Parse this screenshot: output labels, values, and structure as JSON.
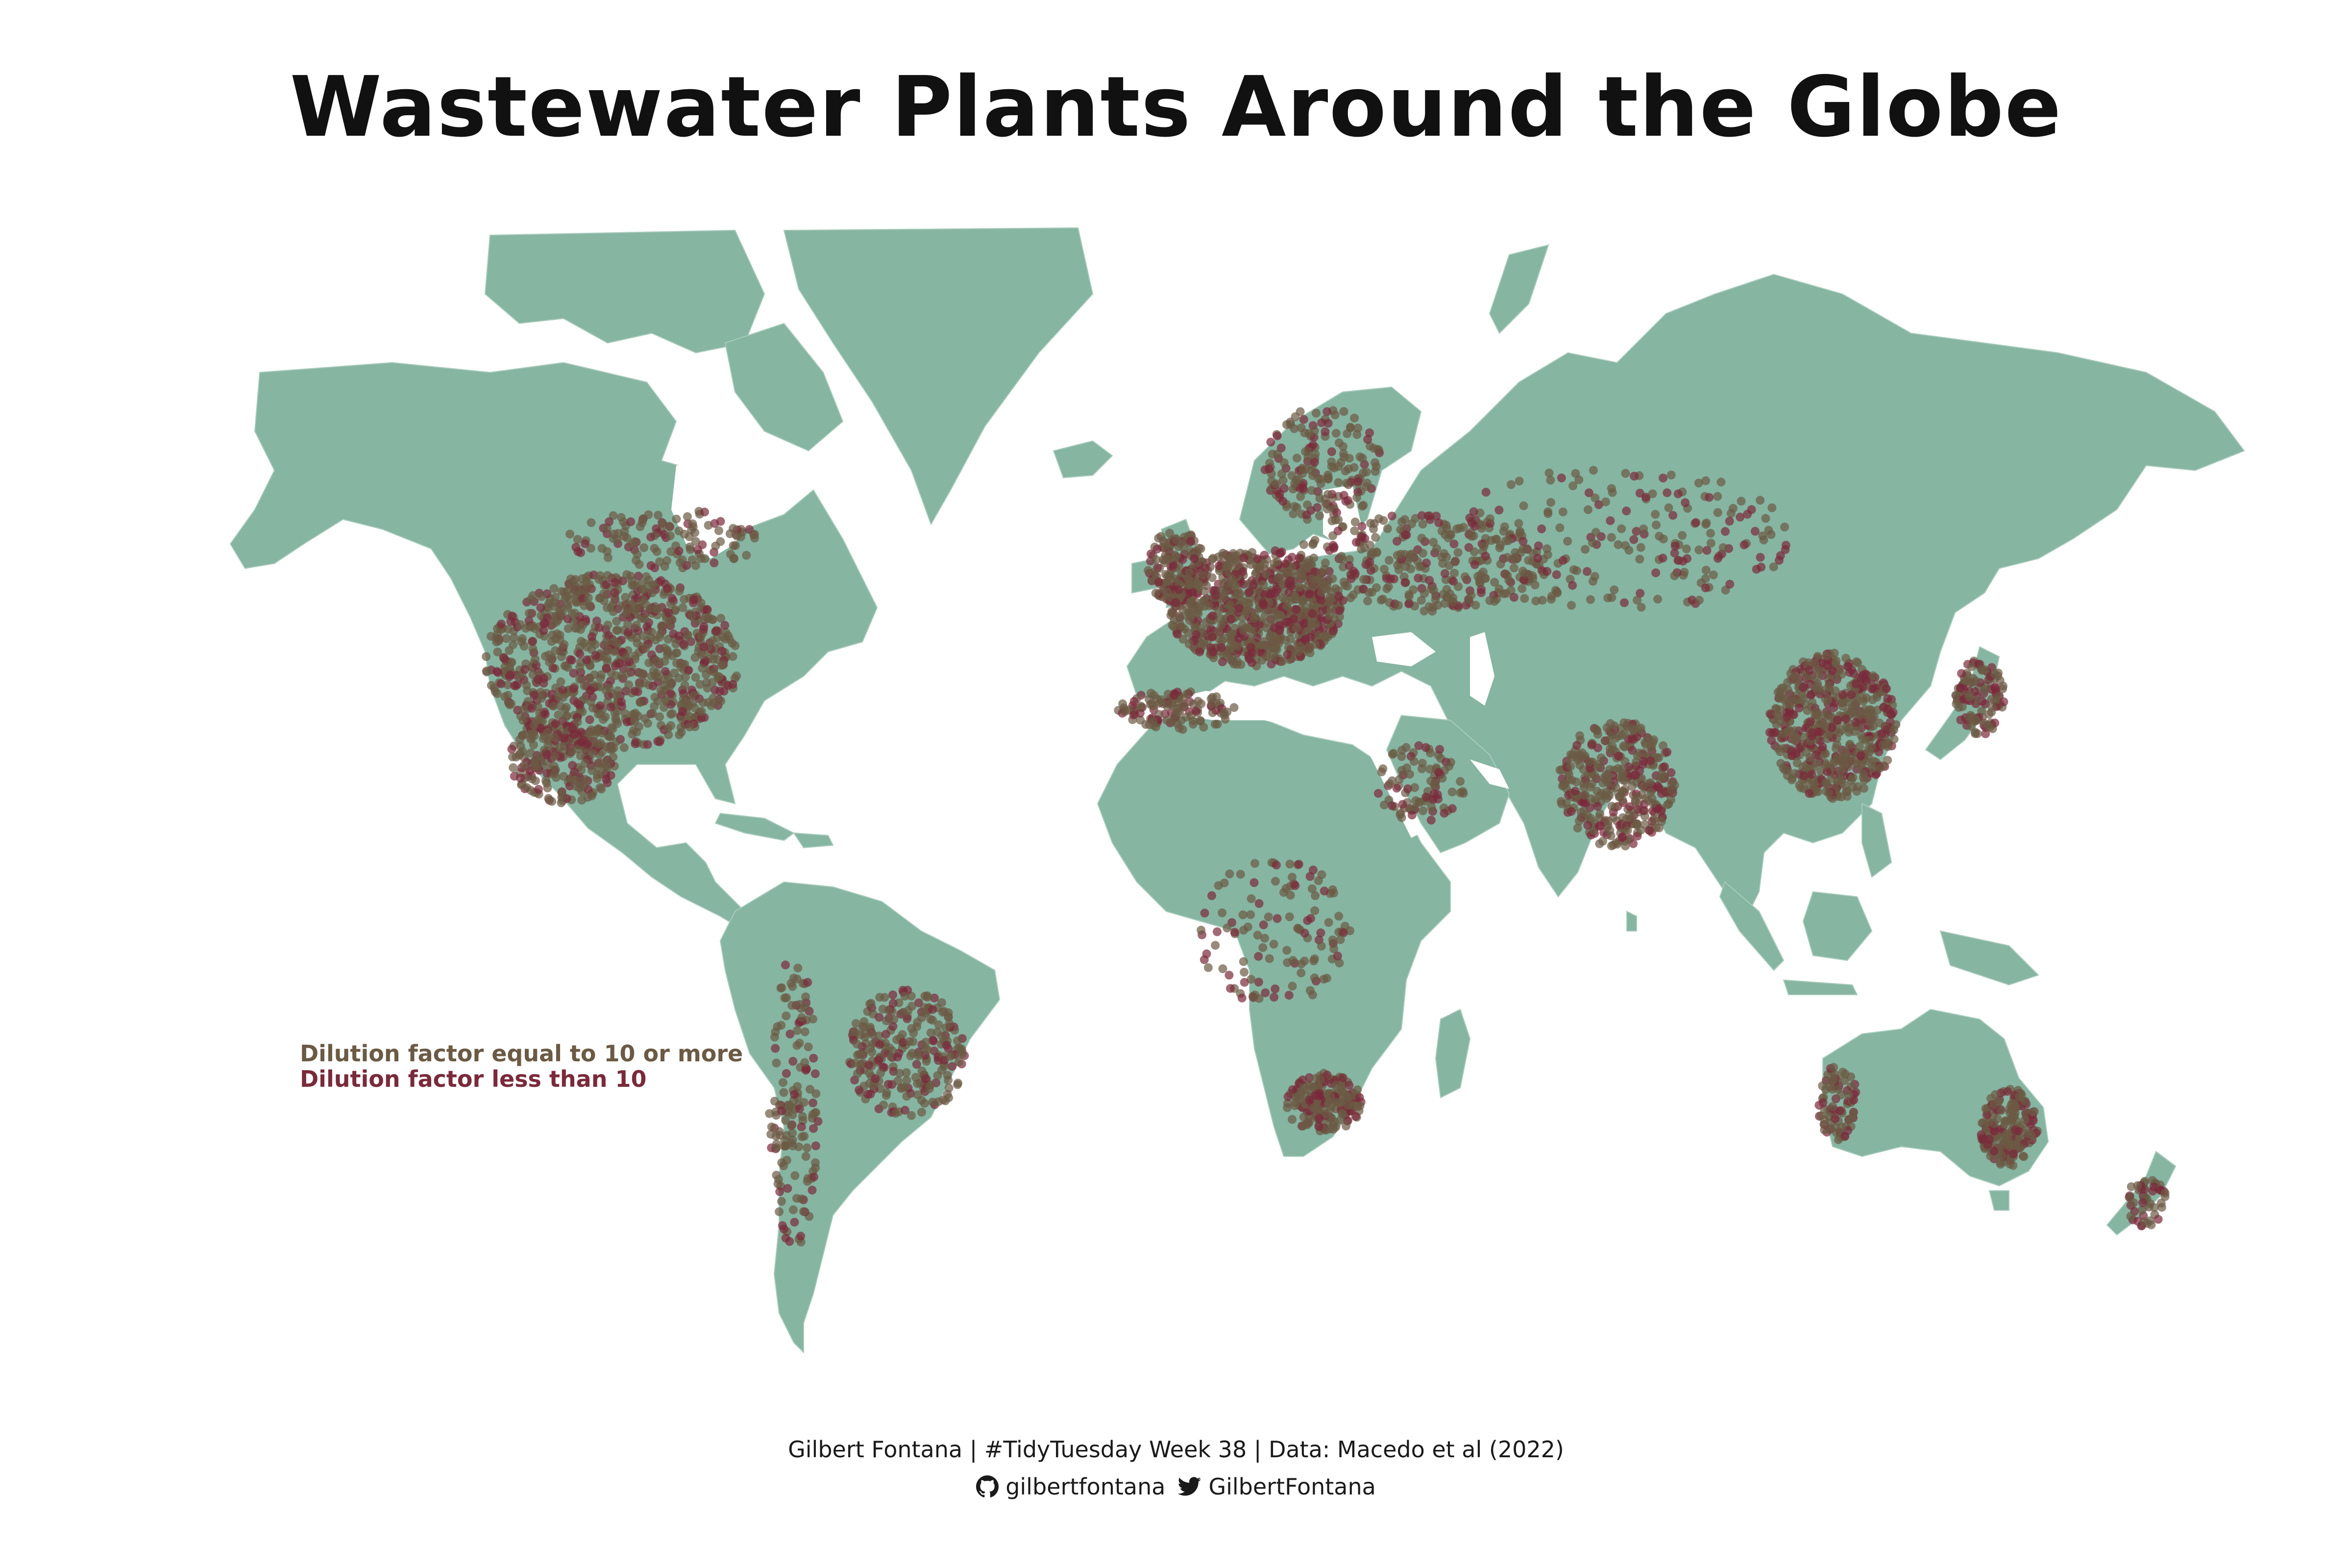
{
  "title": "Wastewater Plants Around the Globe",
  "legend": {
    "items": [
      {
        "label": "Dilution factor equal to 10 or more",
        "color": "#6b5a44"
      },
      {
        "label": "Dilution factor less than 10",
        "color": "#7a2a3a"
      }
    ]
  },
  "colors": {
    "land": "#86b5a2",
    "ocean": "#ffffff",
    "border": "#a9cbbd",
    "dilution_high": "#6b5a44",
    "dilution_low": "#7a2a3a"
  },
  "credits": {
    "line1": "Gilbert Fontana | #TidyTuesday Week 38 | Data: Macedo et al (2022)",
    "github_icon": "github-icon",
    "github_handle": "gilbertfontana",
    "twitter_icon": "twitter-icon",
    "twitter_handle": "GilbertFontana"
  }
}
